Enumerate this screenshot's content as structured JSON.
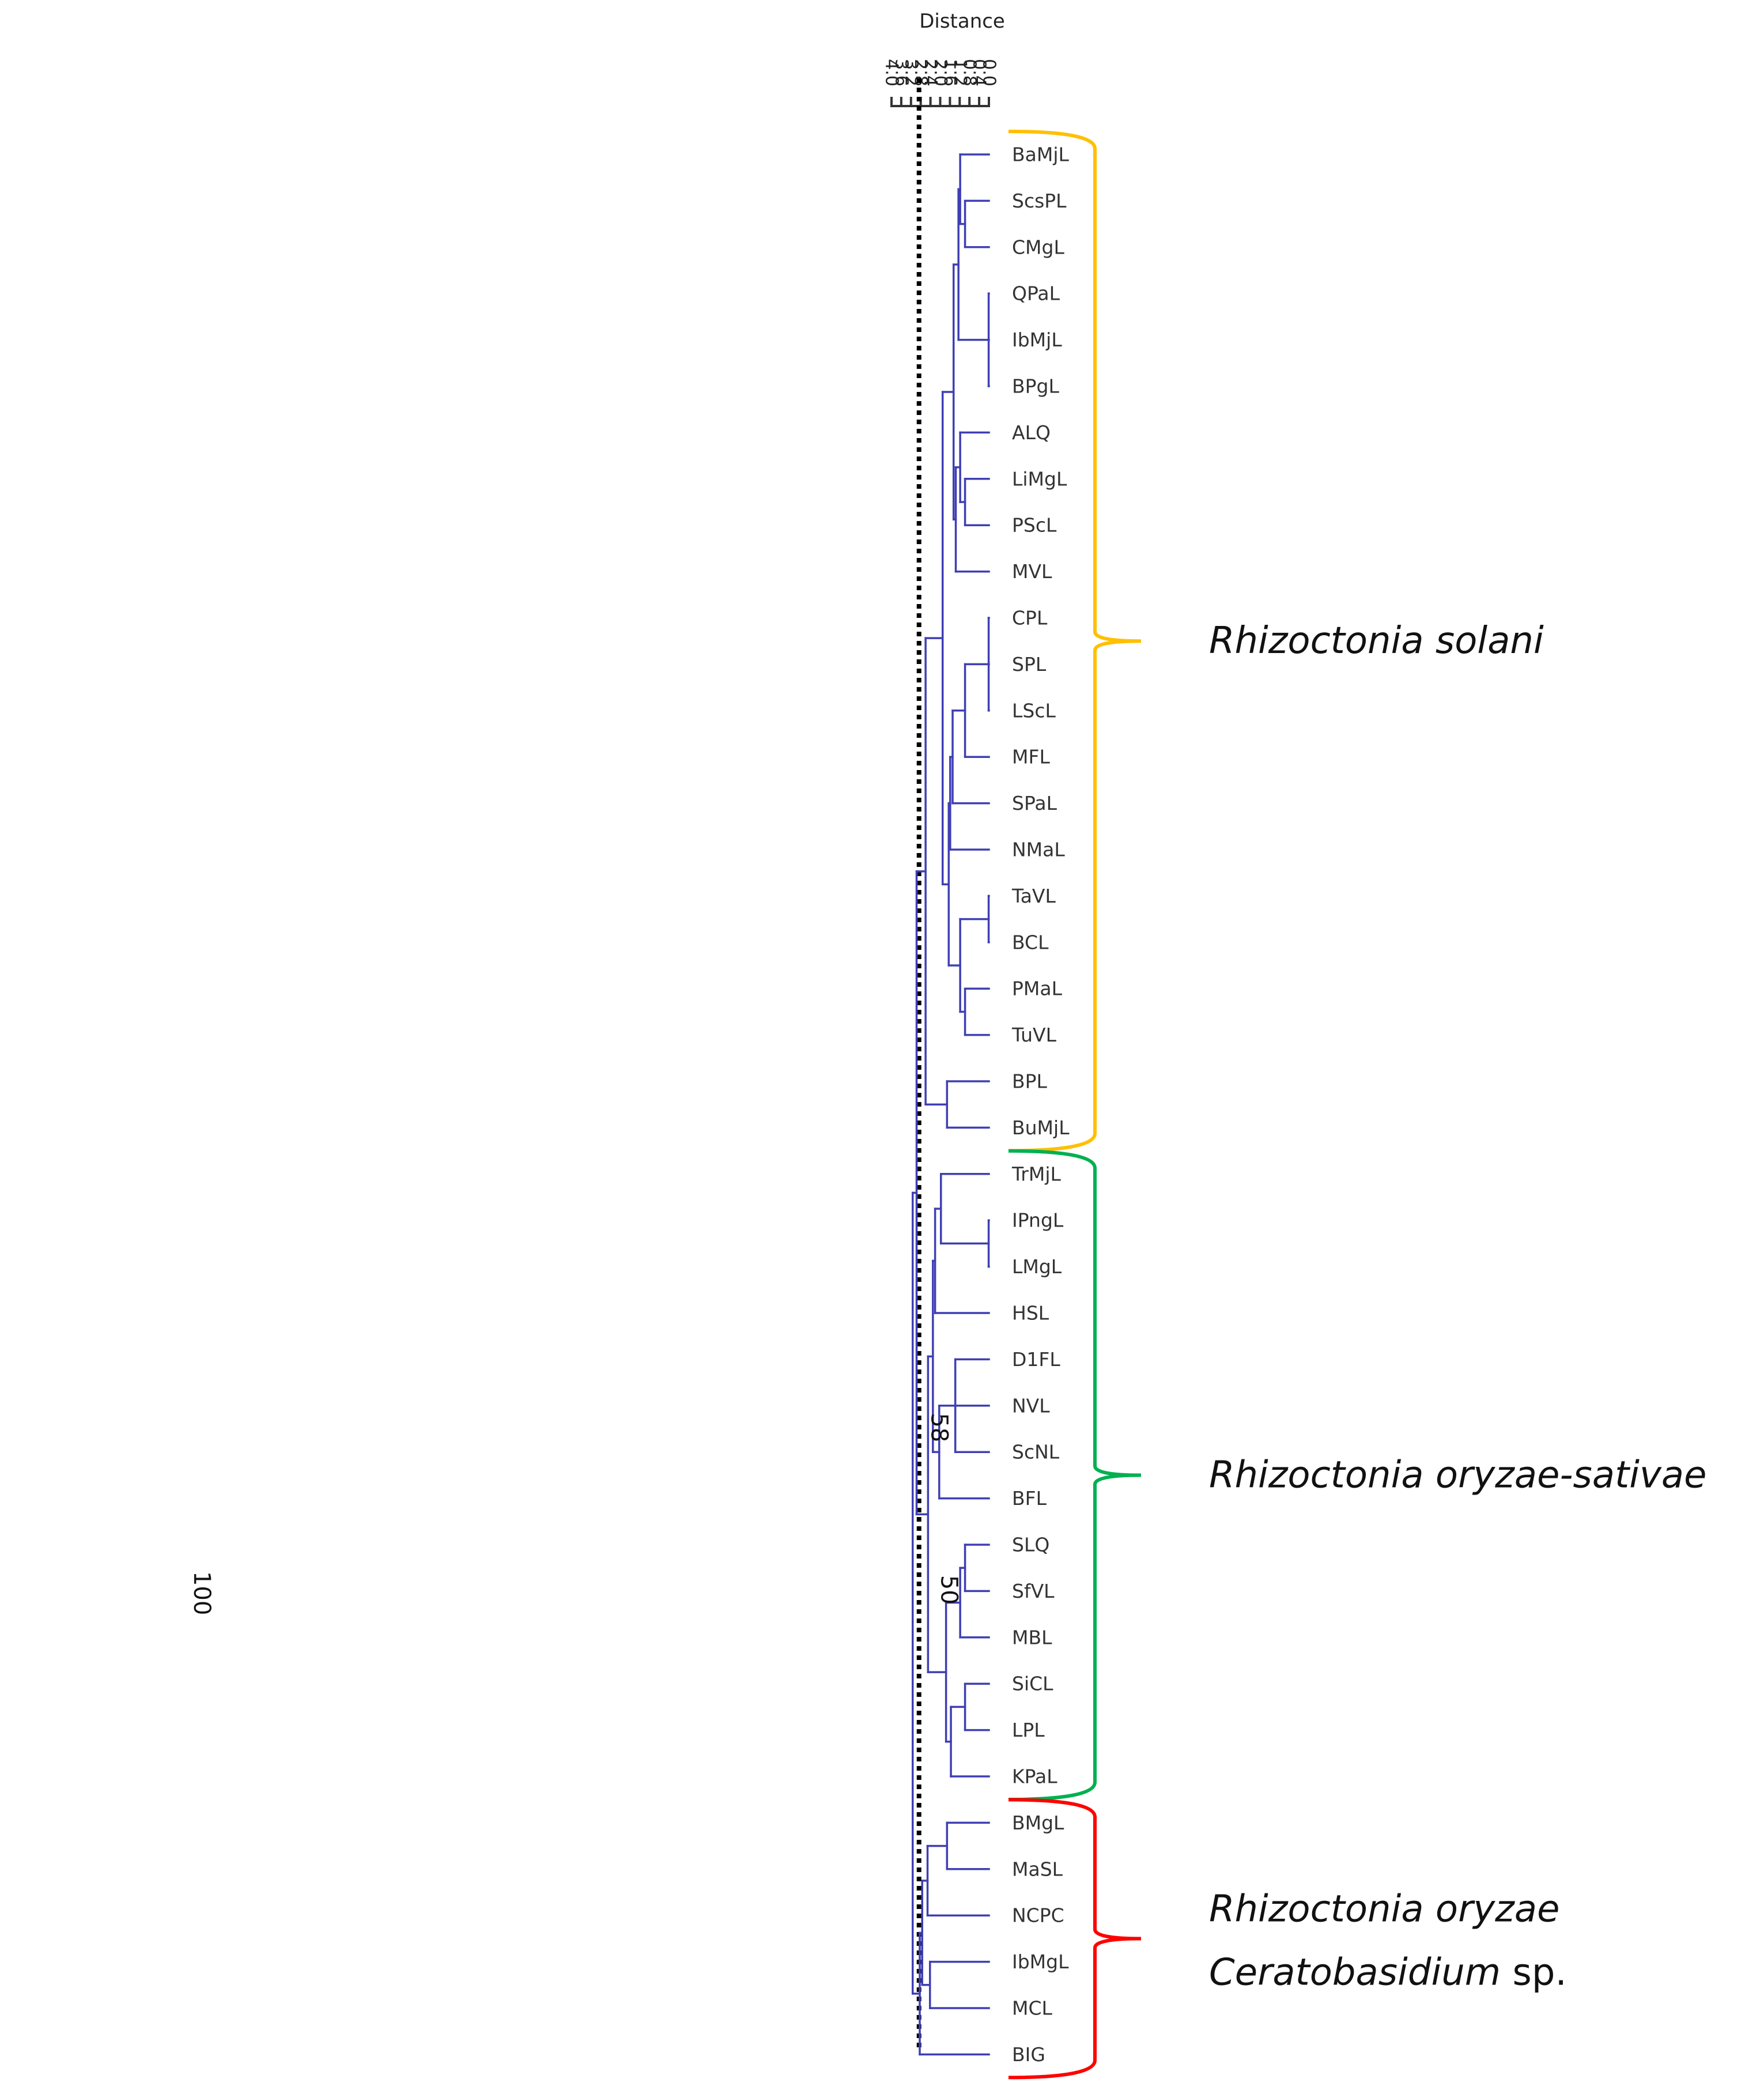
{
  "axis": {
    "title": "Distance",
    "min": 0.0,
    "max": 4.0,
    "ticks": [
      {
        "value": 4.0,
        "label": "4.0"
      },
      {
        "value": 3.6,
        "label": "3.6"
      },
      {
        "value": 3.2,
        "label": "3.2"
      },
      {
        "value": 2.8,
        "label": "2.8"
      },
      {
        "value": 2.4,
        "label": "2.4"
      },
      {
        "value": 2.0,
        "label": "2.0"
      },
      {
        "value": 1.6,
        "label": "1.6"
      },
      {
        "value": 1.2,
        "label": "1.2"
      },
      {
        "value": 0.8,
        "label": "0.8"
      },
      {
        "value": 0.4,
        "label": "0.4"
      },
      {
        "value": 0.0,
        "label": "0.0"
      }
    ]
  },
  "cutoff_distance": 2.87,
  "leaves": [
    "BaMjL",
    "ScsPL",
    "CMgL",
    "QPaL",
    "IbMjL",
    "BPgL",
    "ALQ",
    "LiMgL",
    "PScL",
    "MVL",
    "CPL",
    "SPL",
    "LScL",
    "MFL",
    "SPaL",
    "NMaL",
    "TaVL",
    "BCL",
    "PMaL",
    "TuVL",
    "BPL",
    "BuMjL",
    "TrMjL",
    "IPngL",
    "LMgL",
    "HSL",
    "D1FL",
    "NVL",
    "ScNL",
    "BFL",
    "SLQ",
    "SfVL",
    "MBL",
    "SiCL",
    "LPL",
    "KPaL",
    "BMgL",
    "MaSL",
    "NCPC",
    "IbMgL",
    "MCL",
    "BIG"
  ],
  "tree": {
    "h": 3.13,
    "c": [
      {
        "h": 2.97,
        "c": [
          {
            "h": 2.6,
            "c": [
              {
                "h": 1.9,
                "c": [
                  {
                    "h": 1.45,
                    "c": [
                      {
                        "h": 1.25,
                        "c": [
                          {
                            "h": 1.18,
                            "c": [
                              {
                                "leaf": "BaMjL"
                              },
                              {
                                "h": 0.98,
                                "c": [
                                  {
                                    "leaf": "ScsPL"
                                  },
                                  {
                                    "leaf": "CMgL"
                                  }
                                ]
                              }
                            ]
                          },
                          {
                            "h": 0.01,
                            "c": [
                              {
                                "leaf": "QPaL"
                              },
                              {
                                "leaf": "IbMjL"
                              },
                              {
                                "leaf": "BPgL"
                              }
                            ]
                          }
                        ]
                      },
                      {
                        "h": 1.36,
                        "c": [
                          {
                            "h": 1.18,
                            "c": [
                              {
                                "leaf": "ALQ"
                              },
                              {
                                "h": 0.98,
                                "c": [
                                  {
                                    "leaf": "LiMgL"
                                  },
                                  {
                                    "leaf": "PScL"
                                  }
                                ]
                              }
                            ]
                          },
                          {
                            "leaf": "MVL"
                          }
                        ]
                      }
                    ]
                  },
                  {
                    "h": 1.65,
                    "c": [
                      {
                        "h": 1.59,
                        "c": [
                          {
                            "h": 1.49,
                            "c": [
                              {
                                "h": 0.98,
                                "c": [
                                  {
                                    "h": 0.01,
                                    "c": [
                                      {
                                        "leaf": "CPL"
                                      },
                                      {
                                        "leaf": "SPL"
                                      },
                                      {
                                        "leaf": "LScL"
                                      }
                                    ]
                                  },
                                  {
                                    "leaf": "MFL"
                                  }
                                ]
                              },
                              {
                                "leaf": "SPaL"
                              }
                            ]
                          },
                          {
                            "leaf": "NMaL"
                          }
                        ]
                      },
                      {
                        "h": 1.18,
                        "c": [
                          {
                            "h": 0.01,
                            "c": [
                              {
                                "leaf": "TaVL"
                              },
                              {
                                "leaf": "BCL"
                              }
                            ]
                          },
                          {
                            "h": 0.98,
                            "c": [
                              {
                                "leaf": "PMaL"
                              },
                              {
                                "leaf": "TuVL"
                              }
                            ]
                          }
                        ]
                      }
                    ]
                  }
                ]
              },
              {
                "h": 1.72,
                "c": [
                  {
                    "leaf": "BPL"
                  },
                  {
                    "leaf": "BuMjL"
                  }
                ]
              }
            ]
          },
          {
            "h": 2.5,
            "c": [
              {
                "h": 2.3,
                "c": [
                  {
                    "h": 2.21,
                    "c": [
                      {
                        "h": 1.97,
                        "c": [
                          {
                            "leaf": "TrMjL"
                          },
                          {
                            "h": 0.01,
                            "c": [
                              {
                                "leaf": "IPngL"
                              },
                              {
                                "leaf": "LMgL"
                              }
                            ]
                          }
                        ]
                      },
                      {
                        "leaf": "HSL"
                      }
                    ]
                  },
                  {
                    "h": 2.04,
                    "c": [
                      {
                        "h": 1.38,
                        "c": [
                          {
                            "leaf": "D1FL"
                          },
                          {
                            "leaf": "NVL"
                          },
                          {
                            "leaf": "ScNL"
                          }
                        ],
                        "boot": "58"
                      },
                      {
                        "leaf": "BFL"
                      }
                    ]
                  }
                ]
              },
              {
                "h": 1.76,
                "c": [
                  {
                    "h": 1.18,
                    "c": [
                      {
                        "h": 0.98,
                        "c": [
                          {
                            "leaf": "SLQ"
                          },
                          {
                            "leaf": "SfVL"
                          }
                        ],
                        "boot": "50"
                      },
                      {
                        "leaf": "MBL"
                      }
                    ]
                  },
                  {
                    "h": 1.56,
                    "c": [
                      {
                        "h": 0.98,
                        "c": [
                          {
                            "leaf": "SiCL"
                          },
                          {
                            "leaf": "LPL"
                          }
                        ]
                      },
                      {
                        "leaf": "KPaL"
                      }
                    ]
                  }
                ]
              }
            ]
          }
        ]
      },
      {
        "h": 2.84,
        "c": [
          {
            "h": 2.74,
            "c": [
              {
                "h": 2.52,
                "c": [
                  {
                    "h": 1.72,
                    "c": [
                      {
                        "leaf": "BMgL"
                      },
                      {
                        "leaf": "MaSL"
                      }
                    ]
                  },
                  {
                    "leaf": "NCPC"
                  }
                ]
              },
              {
                "h": 2.42,
                "c": [
                  {
                    "leaf": "IbMgL"
                  },
                  {
                    "leaf": "MCL"
                  }
                ]
              }
            ]
          },
          {
            "leaf": "BIG"
          }
        ]
      }
    ]
  },
  "root_bootstrap": "100",
  "clades": [
    {
      "id": "solani",
      "line1": "Rhizoctonia solani",
      "line2": null,
      "line2_suffix": null,
      "first": "BaMjL",
      "last": "BuMjL",
      "color": "#FFC000"
    },
    {
      "id": "oryzae-sativae",
      "line1": "Rhizoctonia oryzae-sativae",
      "line2": null,
      "line2_suffix": null,
      "first": "TrMjL",
      "last": "KPaL",
      "color": "#00B050"
    },
    {
      "id": "oryzae",
      "line1": "Rhizoctonia oryzae",
      "line2": "Ceratobasidium",
      "line2_suffix": " sp.",
      "first": "BMgL",
      "last": "BIG",
      "color": "#FF0000"
    }
  ],
  "colors": {
    "tree": "#3F3FB4",
    "axis": "#333333",
    "cutoff": "#000000"
  }
}
